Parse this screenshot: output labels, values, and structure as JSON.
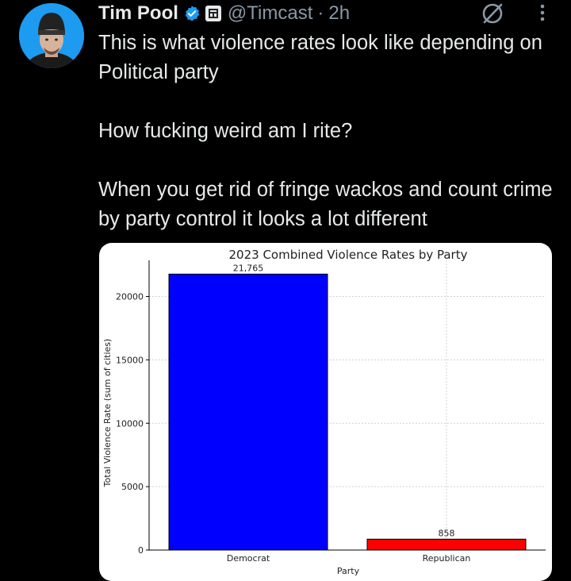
{
  "author": {
    "name": "Tim Pool",
    "handle": "@Timcast",
    "separator": "·",
    "time": "2h"
  },
  "tweet": {
    "paragraphs": [
      "This is what violence rates look like depending on Political party",
      "How fucking weird am I rite?",
      "When you get rid of fringe wackos and count crime by party control it looks a lot different"
    ]
  },
  "icons": [
    "avatar",
    "verified-badge-icon",
    "affiliate-badge-icon",
    "grok-icon",
    "more-options-icon"
  ],
  "colors": {
    "background": "#000000",
    "text": "#e7e9ea",
    "muted": "#8b98a5",
    "verified": "#1d9bf0"
  },
  "chart_data": {
    "type": "bar",
    "title": "2023 Combined Violence Rates by Party",
    "xlabel": "Party",
    "ylabel": "Total Violence Rate (sum of cities)",
    "categories": [
      "Democrat",
      "Republican"
    ],
    "values": [
      21765,
      858
    ],
    "value_labels": [
      "21,765",
      "858"
    ],
    "colors": [
      "#0000ff",
      "#ff0000"
    ],
    "ylim": [
      0,
      22850
    ],
    "yticks": [
      0,
      5000,
      10000,
      15000,
      20000
    ],
    "grid": true
  }
}
